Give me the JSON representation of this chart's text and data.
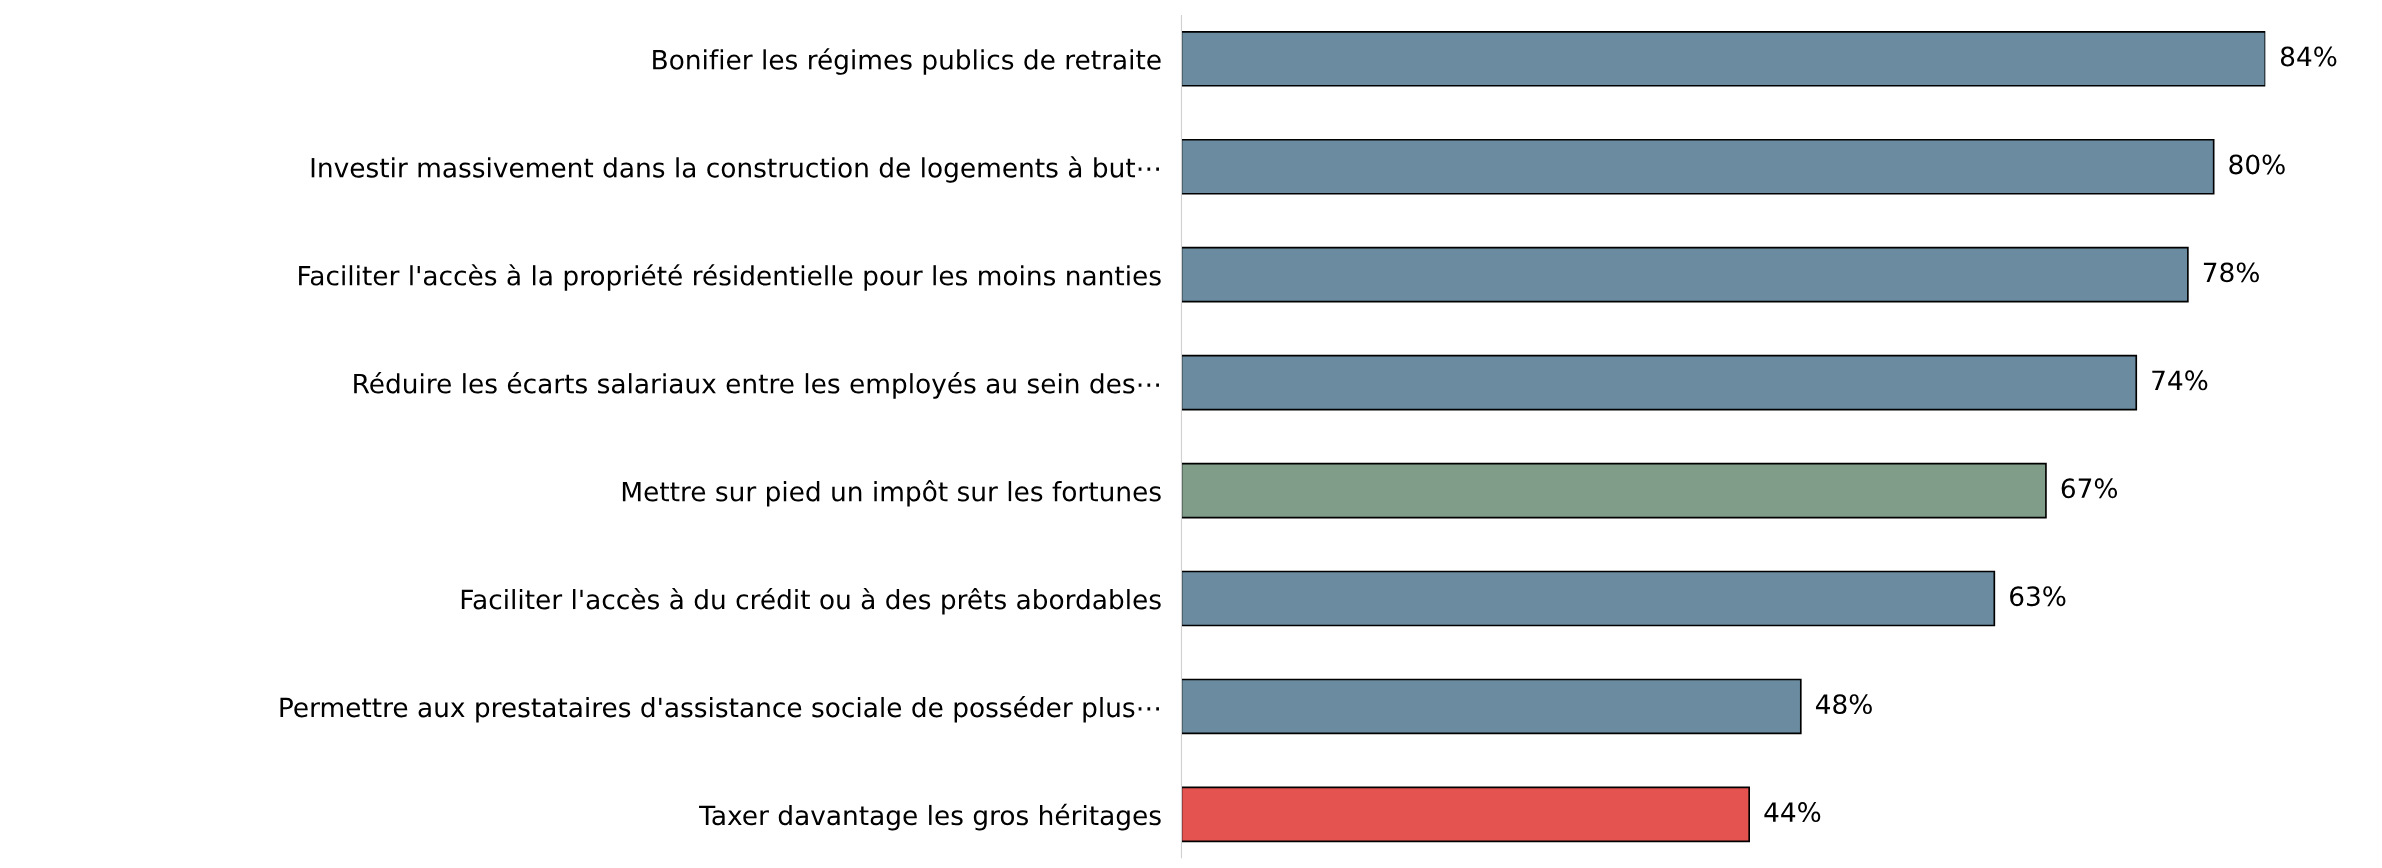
{
  "chart_data": {
    "type": "bar",
    "orientation": "horizontal",
    "categories": [
      "Bonifier les régimes publics de retraite",
      "Investir massivement dans la construction de logements à but⋯",
      "Faciliter l'accès à la propriété résidentielle pour les moins nanties",
      "Réduire les écarts salariaux entre les employés au sein des⋯",
      "Mettre sur pied un impôt sur les fortunes",
      "Faciliter l'accès à du crédit ou à des prêts abordables",
      "Permettre aux prestataires d'assistance sociale de posséder plus⋯",
      "Taxer davantage les gros héritages"
    ],
    "values": [
      84,
      80,
      78,
      74,
      67,
      63,
      48,
      44
    ],
    "value_labels": [
      "84%",
      "80%",
      "78%",
      "74%",
      "67%",
      "63%",
      "48%",
      "44%"
    ],
    "colors": [
      "#6a8ba0",
      "#6a8ba0",
      "#6a8ba0",
      "#6a8ba0",
      "#7f9d88",
      "#6a8ba0",
      "#6a8ba0",
      "#e45350"
    ],
    "grid": false,
    "legend": false
  }
}
